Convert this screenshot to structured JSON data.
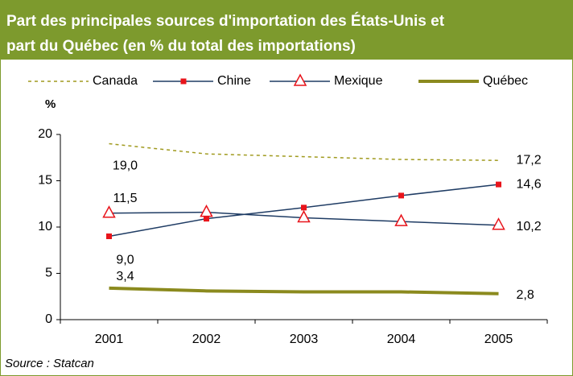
{
  "chart_data": {
    "type": "line",
    "title": [
      "Part des principales sources d'importation des États-Unis et",
      "part du Québec (en % du total des importations)"
    ],
    "y_label": "%",
    "source": "Source : Statcan",
    "categories": [
      "2001",
      "2002",
      "2003",
      "2004",
      "2005"
    ],
    "ylim": [
      0,
      20
    ],
    "yticks": [
      0,
      5,
      10,
      15,
      20
    ],
    "series": [
      {
        "name": "Canada",
        "color": "#a09a1e",
        "style": "dashed",
        "values": [
          19.0,
          17.9,
          17.6,
          17.3,
          17.2
        ],
        "value_labels": [
          "19,0",
          null,
          null,
          null,
          "17,2"
        ]
      },
      {
        "name": "Chine",
        "color": "#1f3c64",
        "marker": "square",
        "marker_color": "#e8141b",
        "values": [
          9.0,
          10.9,
          12.1,
          13.4,
          14.6
        ],
        "value_labels": [
          "9,0",
          null,
          null,
          null,
          "14,6"
        ]
      },
      {
        "name": "Mexique",
        "color": "#1f3c64",
        "marker": "triangle",
        "marker_color": "#e8141b",
        "values": [
          11.5,
          11.6,
          11.0,
          10.6,
          10.2
        ],
        "value_labels": [
          "11,5",
          null,
          null,
          null,
          "10,2"
        ]
      },
      {
        "name": "Québec",
        "color": "#8b8a1e",
        "style": "thick",
        "values": [
          3.4,
          3.1,
          3.0,
          3.0,
          2.8
        ],
        "value_labels": [
          "3,4",
          null,
          null,
          null,
          "2,8"
        ]
      }
    ]
  }
}
